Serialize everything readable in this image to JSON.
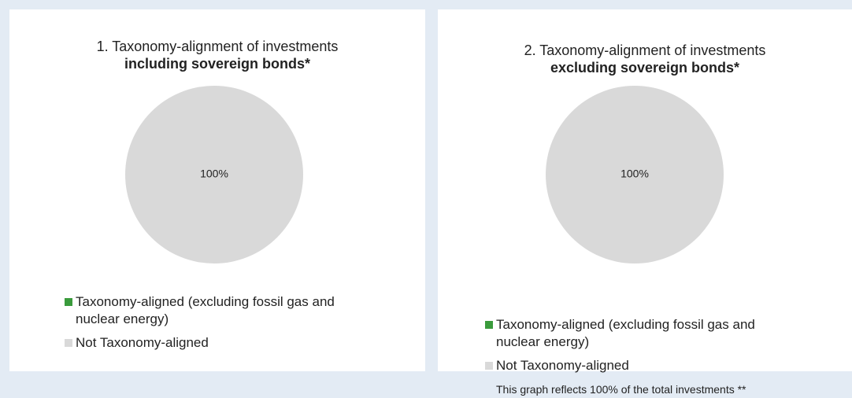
{
  "chart_data": [
    {
      "type": "pie",
      "title": "1. Taxonomy-alignment of investments",
      "subtitle": "including sovereign bonds*",
      "categories": [
        "Taxonomy-aligned (excluding fossil gas and nuclear energy)",
        "Not Taxonomy-aligned"
      ],
      "values": [
        0,
        100
      ],
      "value_labels": [
        null,
        "100%"
      ],
      "colors": [
        "#3a9b3c",
        "#d9d9d9"
      ]
    },
    {
      "type": "pie",
      "title": "2. Taxonomy-alignment of investments",
      "subtitle": "excluding sovereign bonds*",
      "categories": [
        "Taxonomy-aligned (excluding fossil gas and nuclear energy)",
        "Not Taxonomy-aligned"
      ],
      "values": [
        0,
        100
      ],
      "value_labels": [
        null,
        "100%"
      ],
      "colors": [
        "#3a9b3c",
        "#d9d9d9"
      ],
      "annotation": "This graph reflects 100% of the total investments **"
    }
  ]
}
